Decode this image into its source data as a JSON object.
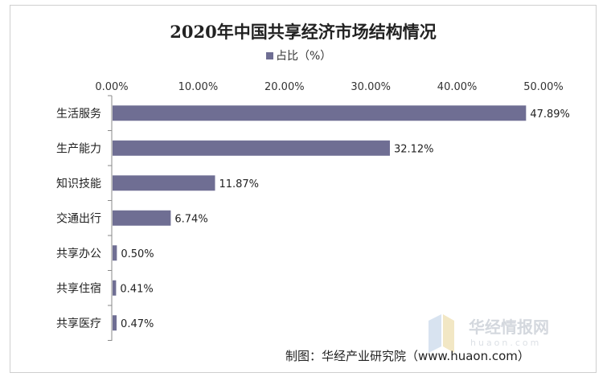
{
  "chart_data": {
    "type": "bar",
    "orientation": "horizontal",
    "title": "2020年中国共享经济市场结构情况",
    "series": [
      {
        "name": "占比（%）",
        "values": [
          47.89,
          32.12,
          11.87,
          6.74,
          0.5,
          0.41,
          0.47
        ]
      }
    ],
    "categories": [
      "生活服务",
      "生产能力",
      "知识技能",
      "交通出行",
      "共享办公",
      "共享住宿",
      "共享医疗"
    ],
    "value_labels": [
      "47.89%",
      "32.12%",
      "11.87%",
      "6.74%",
      "0.50%",
      "0.41%",
      "0.47%"
    ],
    "xlim": [
      0,
      50
    ],
    "xticks": [
      0,
      10,
      20,
      30,
      40,
      50
    ],
    "xtick_labels": [
      "0.00%",
      "10.00%",
      "20.00%",
      "30.00%",
      "40.00%",
      "50.00%"
    ],
    "x_axis_position": "top",
    "grid": false,
    "legend_position": "top-center",
    "bar_color": "#6f6e93"
  },
  "source": "制图：华经产业研究院（www.huaon.com）",
  "watermark": {
    "text": "华经情报网",
    "sub": "huaon.com"
  }
}
